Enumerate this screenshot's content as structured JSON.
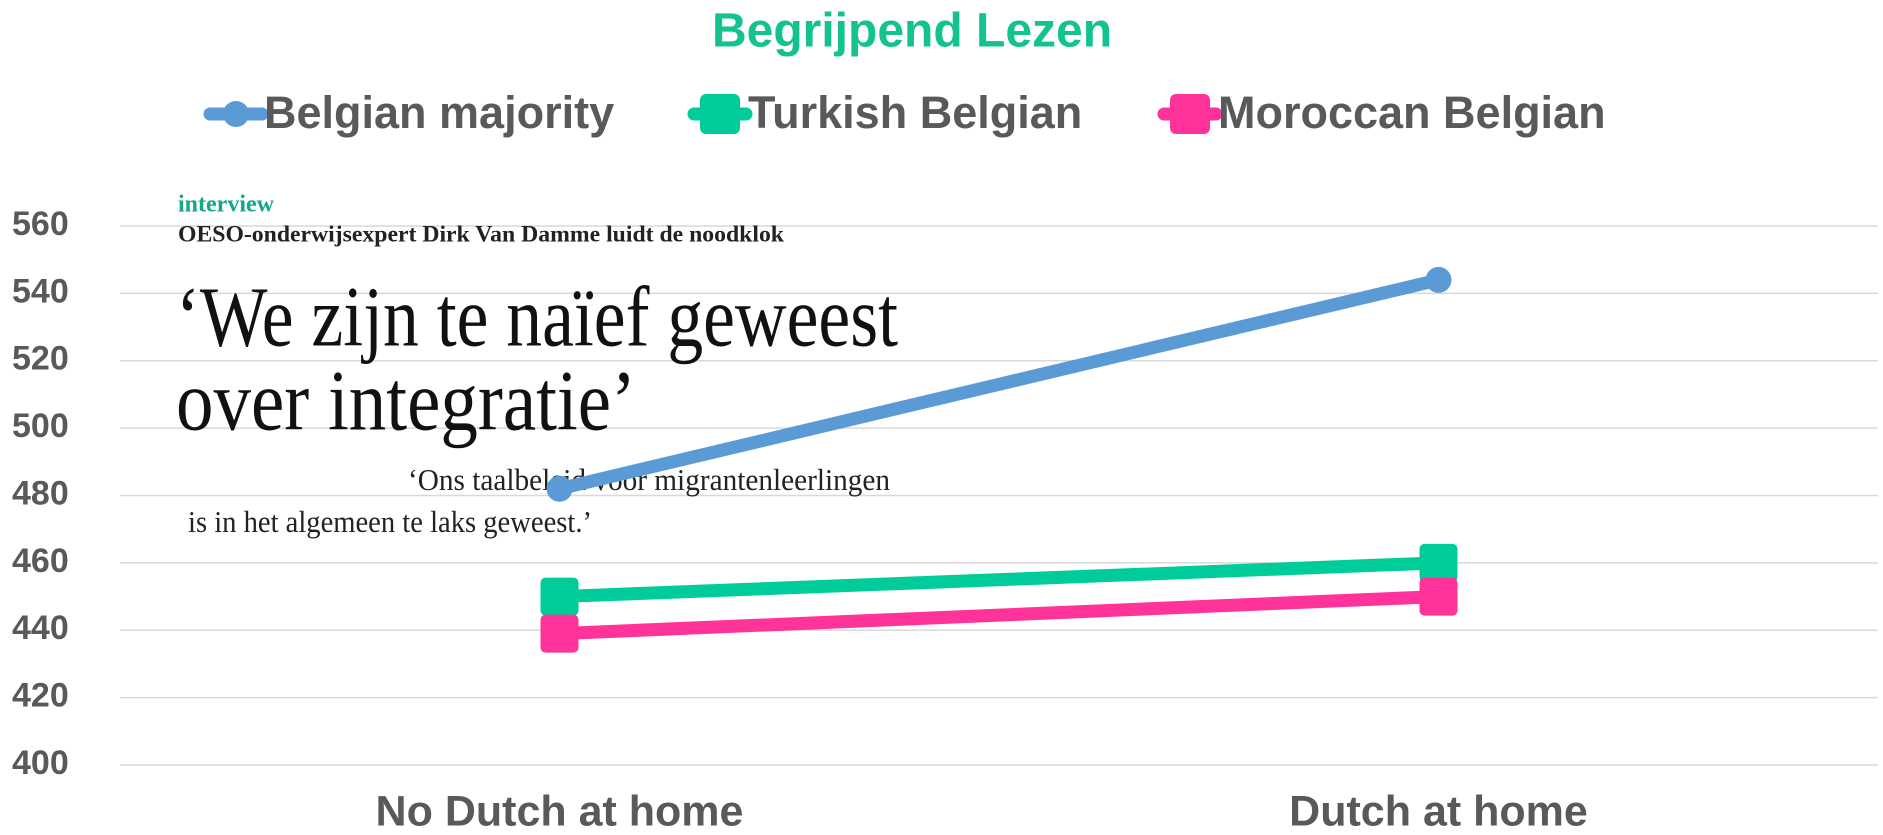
{
  "chart_data": {
    "type": "line",
    "title": "Begrijpend Lezen",
    "categories": [
      "No Dutch at home",
      "Dutch at home"
    ],
    "series": [
      {
        "name": "Belgian majority",
        "color": "#5b9bd5",
        "marker": "circle",
        "values": [
          482,
          544
        ]
      },
      {
        "name": "Turkish Belgian",
        "color": "#00cc99",
        "marker": "square",
        "values": [
          450,
          460
        ]
      },
      {
        "name": "Moroccan Belgian",
        "color": "#ff3399",
        "marker": "square",
        "values": [
          439,
          450
        ]
      }
    ],
    "ylim": [
      400,
      560
    ],
    "yticks": [
      400,
      420,
      440,
      460,
      480,
      500,
      520,
      540,
      560
    ],
    "grid": true,
    "legend": "top",
    "clipping": {
      "label": "interview",
      "subtitle": "OESO-onderwijsexpert Dirk Van Damme luidt de noodklok",
      "headline": [
        "‘We zijn te naïef geweest",
        "over integratie’"
      ],
      "quote": [
        "‘Ons taalbeleid voor migrantenleerlingen",
        "is in het algemeen te laks geweest.’"
      ]
    }
  }
}
